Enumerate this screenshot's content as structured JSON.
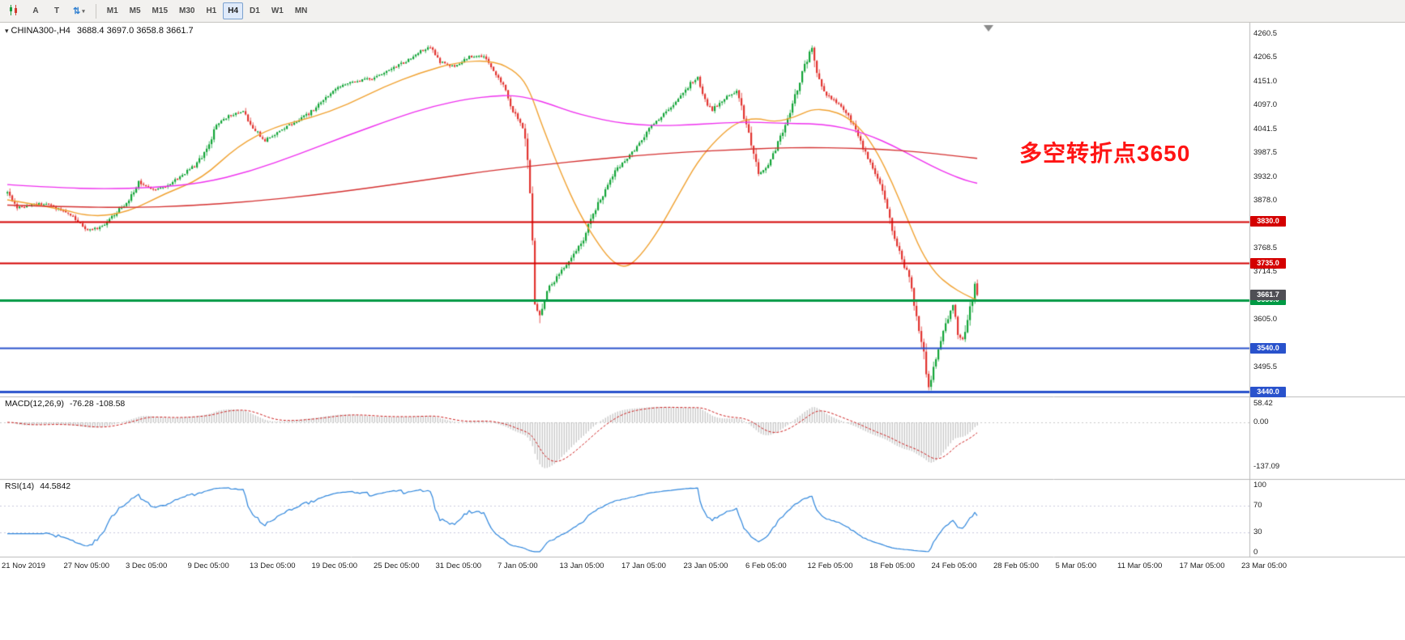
{
  "toolbar": {
    "tool_buttons": [
      {
        "label": "A",
        "name": "arrow-tool"
      },
      {
        "label": "T",
        "name": "text-tool"
      }
    ],
    "timeframes": [
      {
        "label": "M1",
        "active": false
      },
      {
        "label": "M5",
        "active": false
      },
      {
        "label": "M15",
        "active": false
      },
      {
        "label": "M30",
        "active": false
      },
      {
        "label": "H1",
        "active": false
      },
      {
        "label": "H4",
        "active": true
      },
      {
        "label": "D1",
        "active": false
      },
      {
        "label": "W1",
        "active": false
      },
      {
        "label": "MN",
        "active": false
      }
    ]
  },
  "chart": {
    "symbol": "CHINA300-,H4",
    "ohlc": "3688.4 3697.0 3658.8 3661.7",
    "annotation": {
      "text": "多空转折点3650",
      "color": "#ff1414"
    },
    "price_axis": {
      "labels": [
        {
          "text": "4260.5",
          "value": 4260.5
        },
        {
          "text": "4206.5",
          "value": 4206.5
        },
        {
          "text": "4151.0",
          "value": 4151.0
        },
        {
          "text": "4097.0",
          "value": 4097.0
        },
        {
          "text": "4041.5",
          "value": 4041.5
        },
        {
          "text": "3987.5",
          "value": 3987.5
        },
        {
          "text": "3932.0",
          "value": 3932.0
        },
        {
          "text": "3878.0",
          "value": 3878.0
        },
        {
          "text": "3768.5",
          "value": 3768.5
        },
        {
          "text": "3714.5",
          "value": 3714.5
        },
        {
          "text": "3605.0",
          "value": 3605.0
        },
        {
          "text": "3495.5",
          "value": 3495.5
        }
      ]
    },
    "levels": [
      {
        "label": "3830.0",
        "value": 3830.0,
        "color": "#d40000",
        "width": 2
      },
      {
        "label": "3735.0",
        "value": 3735.0,
        "color": "#d40000",
        "width": 2
      },
      {
        "label": "3650.0",
        "value": 3650.0,
        "color": "#009a44",
        "width": 3
      },
      {
        "label": "3540.0",
        "value": 3540.0,
        "color": "#2952cc",
        "width": 2
      },
      {
        "label": "3440.0",
        "value": 3440.0,
        "color": "#2952cc",
        "width": 3
      }
    ],
    "current_price": {
      "label": "3661.7",
      "value": 3661.7,
      "bg": "#4f4f55"
    },
    "dates": [
      "21 Nov 2019",
      "27 Nov 05:00",
      "3 Dec 05:00",
      "9 Dec 05:00",
      "13 Dec 05:00",
      "19 Dec 05:00",
      "25 Dec 05:00",
      "31 Dec 05:00",
      "7 Jan 05:00",
      "13 Jan 05:00",
      "17 Jan 05:00",
      "23 Jan 05:00",
      "6 Feb 05:00",
      "12 Feb 05:00",
      "18 Feb 05:00",
      "24 Feb 05:00",
      "28 Feb 05:00",
      "5 Mar 05:00",
      "11 Mar 05:00",
      "17 Mar 05:00",
      "23 Mar 05:00"
    ]
  },
  "panels": {
    "macd": {
      "title": "MACD(12,26,9)",
      "values": "-76.28 -108.58",
      "axis": [
        {
          "text": "58.42",
          "value": 58.42
        },
        {
          "text": "0.00",
          "value": 0
        },
        {
          "text": "-137.09",
          "value": -137.09
        }
      ]
    },
    "rsi": {
      "title": "RSI(14)",
      "value": "44.5842",
      "axis": [
        {
          "text": "100",
          "value": 100
        },
        {
          "text": "70",
          "value": 70
        },
        {
          "text": "30",
          "value": 30
        },
        {
          "text": "0",
          "value": 0
        }
      ]
    }
  },
  "chart_data": {
    "type": "candlestick",
    "title": "CHINA300- H4",
    "bars": 400,
    "y_range_visible": [
      3440.0,
      4260.5
    ],
    "last_bar": {
      "open": 3688.4,
      "high": 3697.0,
      "low": 3658.8,
      "close": 3661.7
    },
    "price_path": [
      [
        0,
        3895
      ],
      [
        4,
        3862
      ],
      [
        10,
        3868
      ],
      [
        16,
        3872
      ],
      [
        22,
        3856
      ],
      [
        28,
        3836
      ],
      [
        33,
        3810
      ],
      [
        38,
        3816
      ],
      [
        44,
        3846
      ],
      [
        50,
        3880
      ],
      [
        54,
        3922
      ],
      [
        60,
        3904
      ],
      [
        66,
        3912
      ],
      [
        72,
        3938
      ],
      [
        78,
        3962
      ],
      [
        82,
        3998
      ],
      [
        86,
        4050
      ],
      [
        92,
        4075
      ],
      [
        97,
        4082
      ],
      [
        101,
        4048
      ],
      [
        106,
        4016
      ],
      [
        112,
        4038
      ],
      [
        118,
        4058
      ],
      [
        124,
        4078
      ],
      [
        130,
        4108
      ],
      [
        136,
        4140
      ],
      [
        143,
        4152
      ],
      [
        150,
        4158
      ],
      [
        157,
        4178
      ],
      [
        164,
        4198
      ],
      [
        170,
        4222
      ],
      [
        174,
        4230
      ],
      [
        178,
        4196
      ],
      [
        184,
        4186
      ],
      [
        190,
        4208
      ],
      [
        196,
        4210
      ],
      [
        200,
        4180
      ],
      [
        204,
        4140
      ],
      [
        208,
        4082
      ],
      [
        211,
        4060
      ],
      [
        213,
        4032
      ],
      [
        215,
        3905
      ],
      [
        217,
        3645
      ],
      [
        219,
        3618
      ],
      [
        222,
        3672
      ],
      [
        226,
        3702
      ],
      [
        231,
        3738
      ],
      [
        236,
        3778
      ],
      [
        241,
        3846
      ],
      [
        246,
        3906
      ],
      [
        250,
        3948
      ],
      [
        255,
        3976
      ],
      [
        260,
        4008
      ],
      [
        266,
        4058
      ],
      [
        271,
        4082
      ],
      [
        276,
        4108
      ],
      [
        281,
        4148
      ],
      [
        284,
        4160
      ],
      [
        287,
        4108
      ],
      [
        290,
        4086
      ],
      [
        295,
        4112
      ],
      [
        300,
        4128
      ],
      [
        303,
        4072
      ],
      [
        306,
        4012
      ],
      [
        309,
        3938
      ],
      [
        312,
        3952
      ],
      [
        316,
        3996
      ],
      [
        320,
        4048
      ],
      [
        324,
        4118
      ],
      [
        328,
        4186
      ],
      [
        331,
        4232
      ],
      [
        334,
        4150
      ],
      [
        337,
        4118
      ],
      [
        341,
        4105
      ],
      [
        346,
        4072
      ],
      [
        351,
        4012
      ],
      [
        355,
        3962
      ],
      [
        359,
        3920
      ],
      [
        362,
        3858
      ],
      [
        365,
        3788
      ],
      [
        368,
        3742
      ],
      [
        371,
        3702
      ],
      [
        374,
        3608
      ],
      [
        377,
        3528
      ],
      [
        379,
        3452
      ],
      [
        382,
        3518
      ],
      [
        385,
        3576
      ],
      [
        387,
        3612
      ],
      [
        389,
        3642
      ],
      [
        391,
        3576
      ],
      [
        393,
        3556
      ],
      [
        395,
        3608
      ],
      [
        397,
        3648
      ],
      [
        398,
        3688
      ],
      [
        399,
        3661.7
      ]
    ],
    "moving_averages": [
      {
        "name": "ma-fast",
        "color": "#f0a232",
        "path": [
          [
            0,
            3880
          ],
          [
            20,
            3862
          ],
          [
            35,
            3840
          ],
          [
            50,
            3852
          ],
          [
            65,
            3895
          ],
          [
            80,
            3928
          ],
          [
            95,
            4005
          ],
          [
            110,
            4048
          ],
          [
            125,
            4068
          ],
          [
            140,
            4098
          ],
          [
            155,
            4140
          ],
          [
            170,
            4172
          ],
          [
            185,
            4196
          ],
          [
            200,
            4200
          ],
          [
            210,
            4172
          ],
          [
            215,
            4130
          ],
          [
            220,
            4050
          ],
          [
            228,
            3938
          ],
          [
            235,
            3852
          ],
          [
            242,
            3788
          ],
          [
            248,
            3742
          ],
          [
            254,
            3722
          ],
          [
            260,
            3748
          ],
          [
            268,
            3810
          ],
          [
            276,
            3890
          ],
          [
            284,
            3968
          ],
          [
            292,
            4020
          ],
          [
            300,
            4058
          ],
          [
            308,
            4068
          ],
          [
            316,
            4058
          ],
          [
            324,
            4070
          ],
          [
            331,
            4088
          ],
          [
            338,
            4086
          ],
          [
            345,
            4072
          ],
          [
            352,
            4038
          ],
          [
            358,
            3988
          ],
          [
            364,
            3920
          ],
          [
            370,
            3840
          ],
          [
            376,
            3760
          ],
          [
            382,
            3710
          ],
          [
            388,
            3682
          ],
          [
            394,
            3662
          ],
          [
            399,
            3650
          ]
        ]
      },
      {
        "name": "ma-medium",
        "color": "#ee30ee",
        "path": [
          [
            0,
            3915
          ],
          [
            20,
            3908
          ],
          [
            40,
            3905
          ],
          [
            60,
            3908
          ],
          [
            80,
            3918
          ],
          [
            100,
            3945
          ],
          [
            120,
            3985
          ],
          [
            140,
            4028
          ],
          [
            160,
            4068
          ],
          [
            175,
            4095
          ],
          [
            190,
            4112
          ],
          [
            200,
            4118
          ],
          [
            208,
            4120
          ],
          [
            216,
            4112
          ],
          [
            224,
            4098
          ],
          [
            232,
            4082
          ],
          [
            240,
            4070
          ],
          [
            250,
            4058
          ],
          [
            260,
            4052
          ],
          [
            270,
            4050
          ],
          [
            280,
            4052
          ],
          [
            290,
            4055
          ],
          [
            300,
            4058
          ],
          [
            310,
            4058
          ],
          [
            320,
            4055
          ],
          [
            330,
            4055
          ],
          [
            340,
            4050
          ],
          [
            348,
            4040
          ],
          [
            356,
            4025
          ],
          [
            364,
            4005
          ],
          [
            372,
            3982
          ],
          [
            380,
            3958
          ],
          [
            388,
            3938
          ],
          [
            394,
            3925
          ],
          [
            399,
            3918
          ]
        ]
      },
      {
        "name": "ma-slow",
        "color": "#d43030",
        "path": [
          [
            0,
            3868
          ],
          [
            25,
            3864
          ],
          [
            50,
            3862
          ],
          [
            75,
            3866
          ],
          [
            100,
            3876
          ],
          [
            125,
            3890
          ],
          [
            150,
            3908
          ],
          [
            175,
            3928
          ],
          [
            200,
            3948
          ],
          [
            220,
            3960
          ],
          [
            240,
            3972
          ],
          [
            260,
            3982
          ],
          [
            280,
            3990
          ],
          [
            300,
            3995
          ],
          [
            315,
            3999
          ],
          [
            330,
            4000
          ],
          [
            345,
            3999
          ],
          [
            360,
            3996
          ],
          [
            375,
            3990
          ],
          [
            388,
            3982
          ],
          [
            399,
            3975
          ]
        ]
      }
    ],
    "horizontal_levels": [
      3830.0,
      3735.0,
      3650.0,
      3540.0,
      3440.0
    ],
    "indicators": [
      {
        "type": "MACD",
        "params": [
          12,
          26,
          9
        ],
        "display_values": [
          -76.28,
          -108.58
        ],
        "axis_range": [
          58.42,
          -137.09
        ]
      },
      {
        "type": "RSI",
        "params": [
          14
        ],
        "display_value": 44.5842,
        "axis_range": [
          0,
          100
        ],
        "levels": [
          70,
          30
        ]
      }
    ],
    "x_axis_dates": [
      "21 Nov 2019",
      "27 Nov 05:00",
      "3 Dec 05:00",
      "9 Dec 05:00",
      "13 Dec 05:00",
      "19 Dec 05:00",
      "25 Dec 05:00",
      "31 Dec 05:00",
      "7 Jan 05:00",
      "13 Jan 05:00",
      "17 Jan 05:00",
      "23 Jan 05:00",
      "6 Feb 05:00",
      "12 Feb 05:00",
      "18 Feb 05:00",
      "24 Feb 05:00",
      "28 Feb 05:00",
      "5 Mar 05:00",
      "11 Mar 05:00",
      "17 Mar 05:00",
      "23 Mar 05:00"
    ],
    "colors": {
      "up": "#12a437",
      "down": "#e23430",
      "macd_hist": "#b4b4b4",
      "macd_signal": "#cc2222",
      "rsi": "#2f86dc",
      "annotation": "#ff1414"
    }
  }
}
